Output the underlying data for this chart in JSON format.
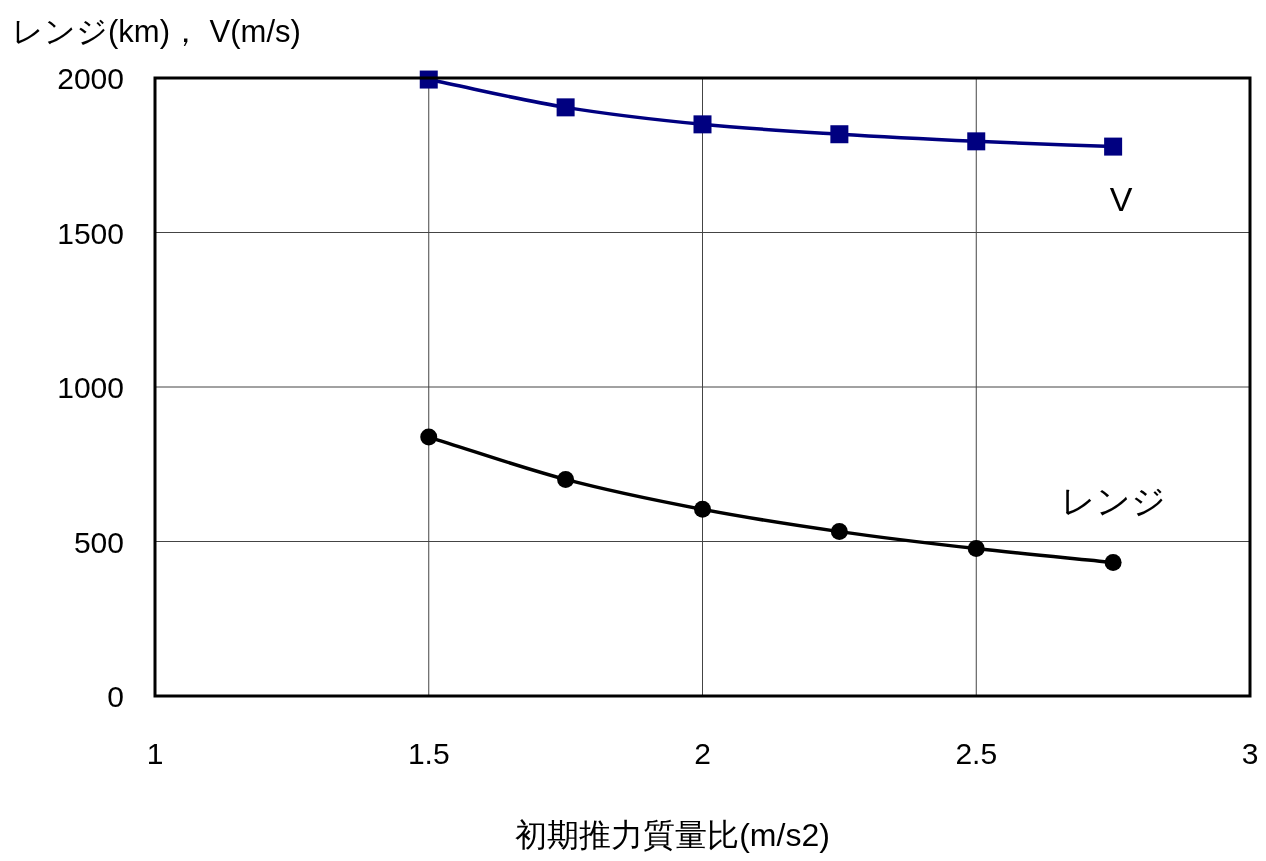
{
  "chart_data": {
    "type": "line",
    "ylabel": "レンジ(km)，  V(m/s)",
    "xlabel": "初期推力質量比(m/s2)",
    "x": [
      1.5,
      1.75,
      2.0,
      2.25,
      2.5,
      2.75
    ],
    "series": [
      {
        "name": "V",
        "color": "#000080",
        "marker": "square",
        "values": [
          1995,
          1905,
          1850,
          1818,
          1795,
          1778
        ]
      },
      {
        "name": "レンジ",
        "color": "#000000",
        "marker": "circle",
        "values": [
          838,
          701,
          604,
          532,
          477,
          432
        ]
      }
    ],
    "xlim": [
      1,
      3
    ],
    "xticks": [
      1,
      1.5,
      2,
      2.5,
      3
    ],
    "ylim": [
      0,
      2000
    ],
    "yticks": [
      0,
      500,
      1000,
      1500,
      2000
    ],
    "grid": true,
    "line_style": "solid"
  }
}
